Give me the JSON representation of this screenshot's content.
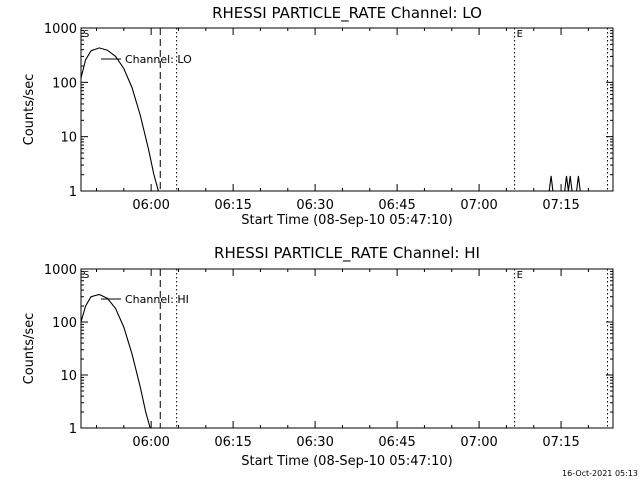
{
  "chart_data": [
    {
      "type": "line",
      "title": "RHESSI PARTICLE_RATE Channel: LO",
      "xlabel": "Start Time (08-Sep-10 05:47:10)",
      "ylabel": "Counts/sec",
      "x_tick_labels": [
        "06:00",
        "06:15",
        "06:30",
        "06:45",
        "07:00",
        "07:15"
      ],
      "x_ticks_min": [
        6000,
        6015,
        6030,
        6045,
        6100,
        6115
      ],
      "y_scale": "log",
      "y_tick_labels": [
        "1",
        "10",
        "100",
        "1000"
      ],
      "ylim": [
        1,
        1000
      ],
      "xlim": [
        "05:47:10",
        "07:24:30"
      ],
      "legend": "Channel: LO",
      "markers": [
        {
          "label": "S",
          "time": "05:47:10",
          "style": "none"
        },
        {
          "label": "",
          "time": "06:01:40",
          "style": "dashed"
        },
        {
          "label": "",
          "time": "06:04:40",
          "style": "dotted"
        },
        {
          "label": "E",
          "time": "07:06:30",
          "style": "dotted"
        },
        {
          "label": "",
          "time": "07:23:30",
          "style": "dotted"
        }
      ],
      "series": [
        {
          "points": [
            [
              "05:47:10",
              120
            ],
            [
              "05:48:00",
              260
            ],
            [
              "05:49:00",
              380
            ],
            [
              "05:50:30",
              430
            ],
            [
              "05:52:00",
              390
            ],
            [
              "05:53:30",
              300
            ],
            [
              "05:55:00",
              180
            ],
            [
              "05:56:30",
              80
            ],
            [
              "05:58:00",
              25
            ],
            [
              "05:59:30",
              6
            ],
            [
              "06:00:30",
              2
            ],
            [
              "06:01:20",
              1
            ]
          ]
        },
        {
          "points": [
            [
              "07:12:50",
              1
            ],
            [
              "07:13:10",
              1.9
            ],
            [
              "07:13:30",
              1
            ],
            [
              "07:15:40",
              1
            ],
            [
              "07:16:00",
              1.9
            ],
            [
              "07:16:20",
              1
            ],
            [
              "07:16:40",
              1.9
            ],
            [
              "07:17:00",
              1
            ],
            [
              "07:17:50",
              1
            ],
            [
              "07:18:10",
              1.9
            ],
            [
              "07:18:30",
              1
            ]
          ]
        }
      ]
    },
    {
      "type": "line",
      "title": "RHESSI PARTICLE_RATE Channel: HI",
      "xlabel": "Start Time (08-Sep-10 05:47:10)",
      "ylabel": "Counts/sec",
      "x_tick_labels": [
        "06:00",
        "06:15",
        "06:30",
        "06:45",
        "07:00",
        "07:15"
      ],
      "y_scale": "log",
      "y_tick_labels": [
        "1",
        "10",
        "100",
        "1000"
      ],
      "ylim": [
        1,
        1000
      ],
      "xlim": [
        "05:47:10",
        "07:24:30"
      ],
      "legend": "Channel: HI",
      "markers": [
        {
          "label": "S",
          "time": "05:47:10",
          "style": "none"
        },
        {
          "label": "",
          "time": "06:01:40",
          "style": "dashed"
        },
        {
          "label": "",
          "time": "06:04:40",
          "style": "dotted"
        },
        {
          "label": "E",
          "time": "07:06:30",
          "style": "dotted"
        },
        {
          "label": "",
          "time": "07:23:30",
          "style": "dotted"
        }
      ],
      "series": [
        {
          "points": [
            [
              "05:47:10",
              100
            ],
            [
              "05:48:00",
              200
            ],
            [
              "05:49:00",
              300
            ],
            [
              "05:50:30",
              330
            ],
            [
              "05:52:00",
              280
            ],
            [
              "05:53:30",
              180
            ],
            [
              "05:55:00",
              80
            ],
            [
              "05:56:30",
              25
            ],
            [
              "05:58:00",
              6
            ],
            [
              "05:59:00",
              2
            ],
            [
              "05:59:50",
              1
            ]
          ]
        }
      ]
    }
  ],
  "footer": {
    "timestamp": "16-Oct-2021 05:13"
  }
}
